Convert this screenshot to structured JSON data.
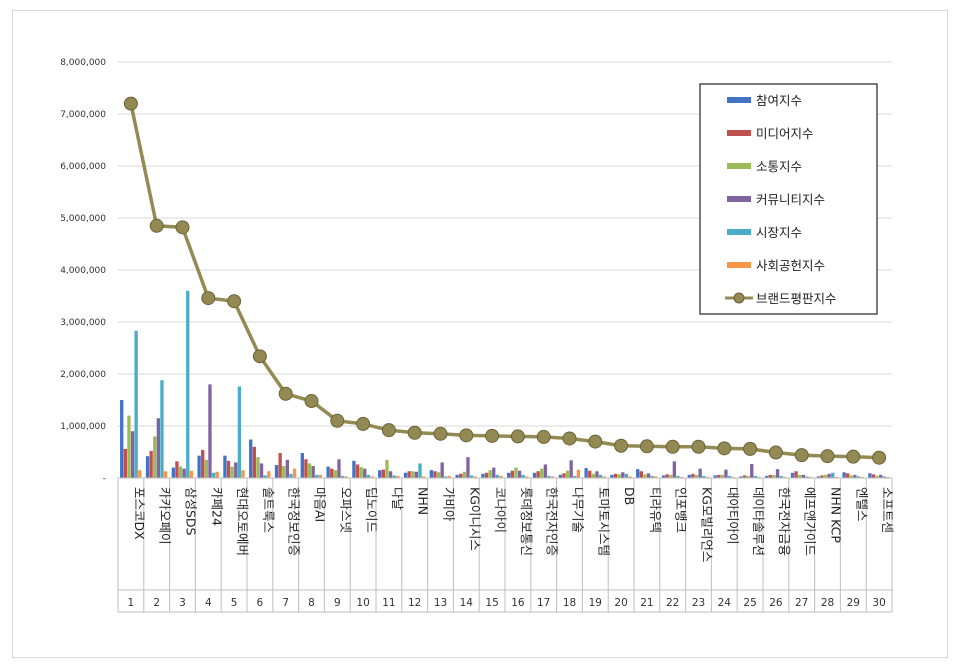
{
  "chart_data": {
    "type": "bar",
    "title": "",
    "xlabel": "",
    "ylabel": "",
    "ylim": [
      0,
      8000000
    ],
    "y_ticks": [
      "-",
      "1,000,000",
      "2,000,000",
      "3,000,000",
      "4,000,000",
      "5,000,000",
      "6,000,000",
      "7,000,000",
      "8,000,000"
    ],
    "legend_position": "top-right",
    "ranks": [
      "1",
      "2",
      "3",
      "4",
      "5",
      "6",
      "7",
      "8",
      "9",
      "10",
      "11",
      "12",
      "13",
      "14",
      "15",
      "16",
      "17",
      "18",
      "19",
      "20",
      "21",
      "22",
      "23",
      "24",
      "25",
      "26",
      "27",
      "28",
      "29",
      "30"
    ],
    "categories": [
      "포스코DX",
      "카카오페이",
      "삼성SDS",
      "카페24",
      "현대오토에버",
      "솔트룩스",
      "한국정보인증",
      "마음AI",
      "오파스넷",
      "딥노이드",
      "다날",
      "NHN",
      "가비아",
      "KG이니시스",
      "코나아이",
      "롯데정보통신",
      "한국전자인증",
      "나무기술",
      "토마토시스템",
      "DB",
      "티라유텍",
      "인포뱅크",
      "KG모빌리언스",
      "대아티아이",
      "데이타솔루션",
      "한국전자금융",
      "에프앤가이드",
      "NHN KCP",
      "엔텔스",
      "소프트센"
    ],
    "series": [
      {
        "name": "참여지수",
        "color": "#4472c4",
        "values": [
          1500000,
          420000,
          200000,
          430000,
          430000,
          740000,
          250000,
          480000,
          220000,
          330000,
          150000,
          100000,
          150000,
          60000,
          80000,
          100000,
          100000,
          60000,
          190000,
          60000,
          170000,
          50000,
          60000,
          50000,
          30000,
          40000,
          100000,
          30000,
          110000,
          90000
        ]
      },
      {
        "name": "미디어지수",
        "color": "#c0504d",
        "values": [
          560000,
          520000,
          320000,
          540000,
          330000,
          600000,
          480000,
          360000,
          180000,
          260000,
          160000,
          130000,
          130000,
          80000,
          100000,
          140000,
          130000,
          90000,
          140000,
          80000,
          130000,
          70000,
          80000,
          60000,
          50000,
          60000,
          130000,
          50000,
          90000,
          70000
        ]
      },
      {
        "name": "소통지수",
        "color": "#9bbb59",
        "values": [
          1200000,
          800000,
          220000,
          350000,
          220000,
          400000,
          230000,
          280000,
          150000,
          210000,
          350000,
          130000,
          110000,
          120000,
          150000,
          200000,
          180000,
          140000,
          80000,
          70000,
          70000,
          60000,
          60000,
          60000,
          40000,
          60000,
          60000,
          60000,
          50000,
          40000
        ]
      },
      {
        "name": "커뮤니티지수",
        "color": "#8064a2",
        "values": [
          900000,
          1150000,
          180000,
          1800000,
          300000,
          280000,
          350000,
          230000,
          360000,
          180000,
          130000,
          120000,
          300000,
          400000,
          200000,
          140000,
          260000,
          340000,
          130000,
          110000,
          90000,
          320000,
          180000,
          160000,
          270000,
          170000,
          60000,
          80000,
          60000,
          60000
        ]
      },
      {
        "name": "시장지수",
        "color": "#4bacc6",
        "values": [
          2830000,
          1880000,
          3600000,
          100000,
          1760000,
          50000,
          80000,
          60000,
          40000,
          60000,
          50000,
          280000,
          30000,
          50000,
          60000,
          60000,
          40000,
          40000,
          60000,
          80000,
          40000,
          40000,
          40000,
          40000,
          40000,
          40000,
          30000,
          100000,
          30000,
          30000
        ]
      },
      {
        "name": "사회공헌지수",
        "color": "#f79646",
        "values": [
          150000,
          130000,
          140000,
          120000,
          150000,
          130000,
          180000,
          60000,
          30000,
          30000,
          40000,
          30000,
          40000,
          30000,
          40000,
          30000,
          30000,
          160000,
          30000,
          30000,
          30000,
          20000,
          20000,
          20000,
          20000,
          20000,
          20000,
          20000,
          20000,
          20000
        ]
      }
    ],
    "line": {
      "name": "브랜드평판지수",
      "color": "#948a54",
      "values": [
        7200000,
        4850000,
        4820000,
        3460000,
        3400000,
        2340000,
        1620000,
        1480000,
        1100000,
        1040000,
        920000,
        870000,
        850000,
        820000,
        810000,
        800000,
        790000,
        760000,
        700000,
        620000,
        610000,
        600000,
        600000,
        570000,
        560000,
        490000,
        440000,
        420000,
        410000,
        390000
      ]
    }
  }
}
